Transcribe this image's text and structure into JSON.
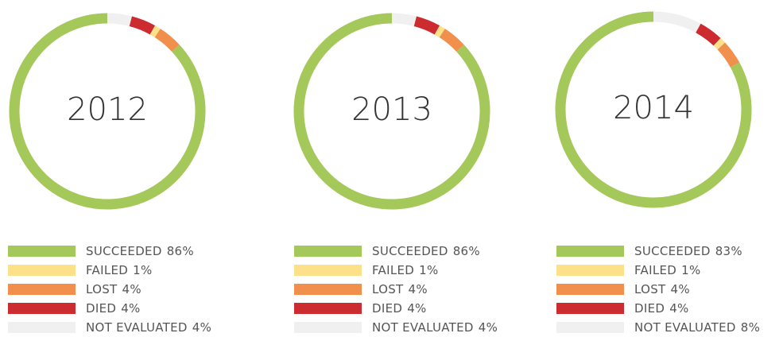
{
  "chart_data": [
    {
      "type": "donut",
      "title": "2012",
      "categories": [
        "SUCCEEDED",
        "FAILED",
        "LOST",
        "DIED",
        "NOT EVALUATED"
      ],
      "values": [
        86,
        1,
        4,
        4,
        4
      ],
      "value_labels": [
        "86%",
        "1%",
        "4%",
        "4%",
        "4%"
      ],
      "colors": [
        "#a5c85a",
        "#fde08a",
        "#f0904c",
        "#cc2b2f",
        "#f0f0f0"
      ]
    },
    {
      "type": "donut",
      "title": "2013",
      "categories": [
        "SUCCEEDED",
        "FAILED",
        "LOST",
        "DIED",
        "NOT EVALUATED"
      ],
      "values": [
        86,
        1,
        4,
        4,
        4
      ],
      "value_labels": [
        "86%",
        "1%",
        "4%",
        "4%",
        "4%"
      ],
      "colors": [
        "#a5c85a",
        "#fde08a",
        "#f0904c",
        "#cc2b2f",
        "#f0f0f0"
      ]
    },
    {
      "type": "donut",
      "title": "2014",
      "categories": [
        "SUCCEEDED",
        "FAILED",
        "LOST",
        "DIED",
        "NOT EVALUATED"
      ],
      "values": [
        83,
        1,
        4,
        4,
        8
      ],
      "value_labels": [
        "83%",
        "1%",
        "4%",
        "4%",
        "8%"
      ],
      "colors": [
        "#a5c85a",
        "#fde08a",
        "#f0904c",
        "#cc2b2f",
        "#f0f0f0"
      ]
    }
  ]
}
